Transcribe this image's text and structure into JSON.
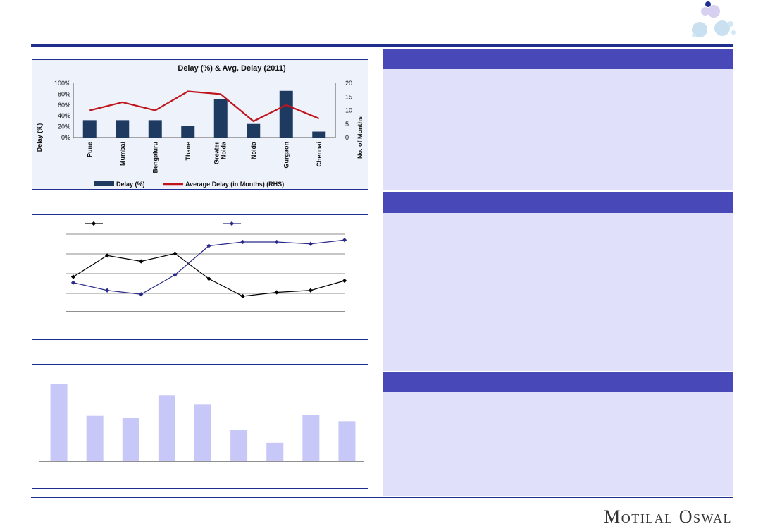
{
  "brand": {
    "name": "Motilal Oswal"
  },
  "chart_data": [
    {
      "type": "bar",
      "title": "Delay (%) & Avg. Delay (2011)",
      "categories": [
        "Pune",
        "Mumbai",
        "Bengaluru",
        "Thane",
        "Greater Noida",
        "Noida",
        "Gurgaon",
        "Chennai"
      ],
      "series": [
        {
          "name": "Delay (%)",
          "type": "bar",
          "axis": "left",
          "color": "#1f3a60",
          "values": [
            32,
            32,
            32,
            22,
            71,
            25,
            86,
            11
          ]
        },
        {
          "name": "Average Delay (in Months) (RHS)",
          "type": "line",
          "axis": "right",
          "color": "#c0141c",
          "values": [
            10,
            13,
            10,
            17,
            16,
            6,
            12,
            7
          ]
        }
      ],
      "ylabel": "Delay (%)",
      "y2label": "No. of Months",
      "ylim": [
        0,
        100
      ],
      "y2lim": [
        0,
        20
      ],
      "yticks": [
        "0%",
        "20%",
        "40%",
        "60%",
        "80%",
        "100%"
      ],
      "y2ticks": [
        "0",
        "5",
        "10",
        "15",
        "20"
      ],
      "legend": "bottom"
    },
    {
      "type": "line",
      "categories": [
        "",
        "",
        "",
        "",
        "",
        "",
        "",
        "",
        ""
      ],
      "series": [
        {
          "color": "#000000",
          "values": [
            1.8,
            2.9,
            2.6,
            3.0,
            1.7,
            0.8,
            1.0,
            1.1,
            1.6
          ]
        },
        {
          "color": "#2a2a8a",
          "values": [
            1.5,
            1.1,
            0.9,
            1.9,
            3.4,
            3.6,
            3.6,
            3.5,
            3.7
          ]
        }
      ],
      "ylim": [
        0,
        4
      ],
      "grid": true,
      "legend": "top"
    },
    {
      "type": "bar",
      "categories": [
        "",
        "",
        "",
        "",
        "",
        "",
        "",
        "",
        ""
      ],
      "values": [
        100,
        59,
        56,
        86,
        74,
        41,
        24,
        60,
        52
      ],
      "color": "#c8c8f8"
    }
  ],
  "right_panels": [
    {
      "heading": ""
    },
    {
      "heading": ""
    },
    {
      "heading": ""
    }
  ]
}
